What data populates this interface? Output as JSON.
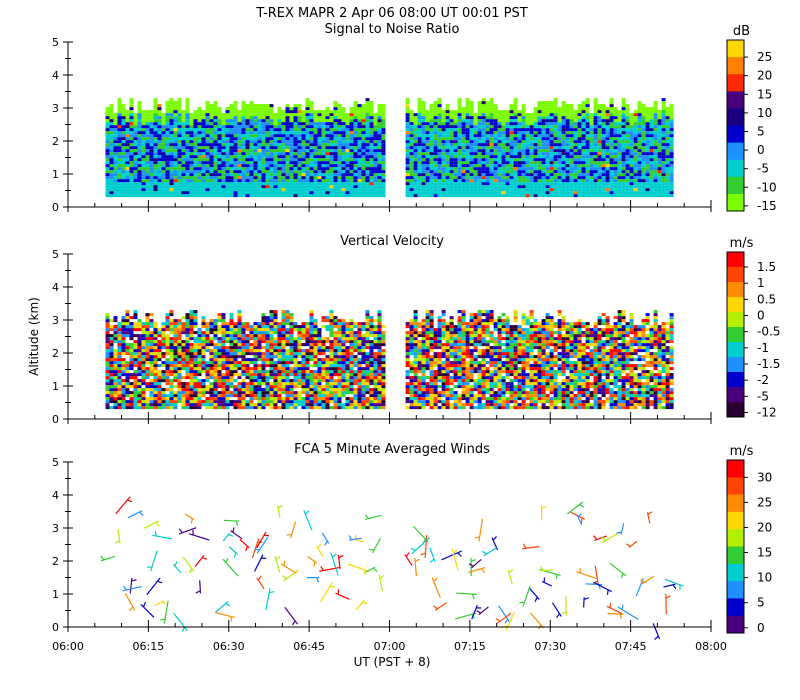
{
  "header": {
    "title": "T-REX   MAPR   2 Apr 06   08:00 UT   00:01   PST"
  },
  "colors": {
    "snr_scale": [
      "#7cfc00",
      "#32cd32",
      "#00cdcd",
      "#1e90ff",
      "#0000cd",
      "#1a0080",
      "#4b0082",
      "#ff2a00",
      "#ff7f00",
      "#ffd700"
    ],
    "vv_scale": [
      "#2b0033",
      "#4b0082",
      "#0000cd",
      "#1e90ff",
      "#00cdcd",
      "#32cd32",
      "#b4ee00",
      "#ffd700",
      "#ff8c00",
      "#ff4500",
      "#ff0000"
    ],
    "wind_scale": [
      "#4b0082",
      "#0000cd",
      "#1e90ff",
      "#00cdcd",
      "#32cd32",
      "#b4ee00",
      "#ffd700",
      "#ff8c00",
      "#ff4500",
      "#ff0000"
    ]
  },
  "chart_data": [
    {
      "type": "heatmap",
      "title": "Signal to Noise Ratio",
      "ylabel": "",
      "ylim": [
        0,
        5
      ],
      "yticks": [
        "0",
        "1",
        "2",
        "3",
        "4",
        "5"
      ],
      "xlim_minutes": [
        0,
        120
      ],
      "data_gap_minutes": [
        59,
        63
      ],
      "data_ranges_minutes": [
        [
          7,
          59
        ],
        [
          63,
          113
        ]
      ],
      "data_altitude_km": [
        0.3,
        3.3
      ],
      "colorbar": {
        "unit": "dB",
        "labels": [
          "25",
          "20",
          "15",
          "10",
          "5",
          "0",
          "-5",
          "-10",
          "-15"
        ]
      }
    },
    {
      "type": "heatmap",
      "title": "Vertical Velocity",
      "ylabel": "Altitude  (km)",
      "ylim": [
        0,
        5
      ],
      "yticks": [
        "0",
        "1",
        "2",
        "3",
        "4",
        "5"
      ],
      "xlim_minutes": [
        0,
        120
      ],
      "data_gap_minutes": [
        59,
        63
      ],
      "data_ranges_minutes": [
        [
          7,
          59
        ],
        [
          63,
          113
        ]
      ],
      "data_altitude_km": [
        0.3,
        3.3
      ],
      "colorbar": {
        "unit": "m/s",
        "labels": [
          "1.5",
          "1",
          "0.5",
          "0",
          "-0.5",
          "-1",
          "-1.5",
          "-2",
          "-5",
          "-12"
        ]
      }
    },
    {
      "type": "scatter",
      "title": "FCA 5 Minute Averaged Winds",
      "ylabel": "",
      "ylim": [
        0,
        5
      ],
      "yticks": [
        "0",
        "1",
        "2",
        "3",
        "4",
        "5"
      ],
      "xlabel": "UT  (PST + 8)",
      "xticks": [
        "06:00",
        "06:15",
        "06:30",
        "06:45",
        "07:00",
        "07:15",
        "07:30",
        "07:45",
        "08:00"
      ],
      "xlim_minutes": [
        0,
        120
      ],
      "data_ranges_minutes": [
        [
          7,
          59
        ],
        [
          63,
          113
        ]
      ],
      "data_altitude_km": [
        0.1,
        3.5
      ],
      "colorbar": {
        "unit": "m/s",
        "labels": [
          "30",
          "25",
          "20",
          "15",
          "10",
          "5",
          "0"
        ]
      }
    }
  ]
}
